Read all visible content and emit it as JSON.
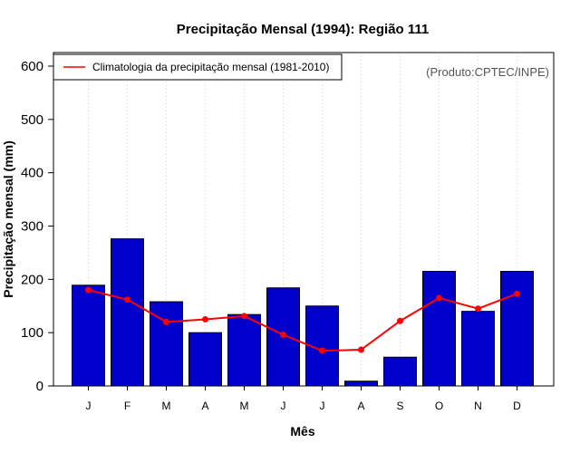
{
  "chart_data": {
    "type": "bar",
    "title": "Precipitação Mensal (1994): Região 111",
    "xlabel": "Mês",
    "ylabel": "Precipitação mensal (mm)",
    "ylim": [
      0,
      600
    ],
    "yticks": [
      "0",
      "100",
      "200",
      "300",
      "400",
      "500",
      "600"
    ],
    "categories": [
      "J",
      "F",
      "M",
      "A",
      "M",
      "J",
      "J",
      "A",
      "S",
      "O",
      "N",
      "D"
    ],
    "series": [
      {
        "name": "Precipitação mensal (1994)",
        "type": "bar",
        "color": "#0000CC",
        "values": [
          189,
          276,
          158,
          100,
          134,
          184,
          150,
          9,
          54,
          215,
          140,
          215
        ]
      },
      {
        "name": "Climatologia da precipitação mensal (1981-2010)",
        "type": "line",
        "color": "#FF0000",
        "values": [
          180,
          162,
          120,
          125,
          131,
          96,
          66,
          68,
          122,
          165,
          145,
          173
        ]
      }
    ],
    "legend": {
      "label": "Climatologia da precipitação mensal (1981-2010)",
      "position": "top-left"
    },
    "grid": "vertical-dotted",
    "annotation": "(Produto:CPTEC/INPE)"
  }
}
